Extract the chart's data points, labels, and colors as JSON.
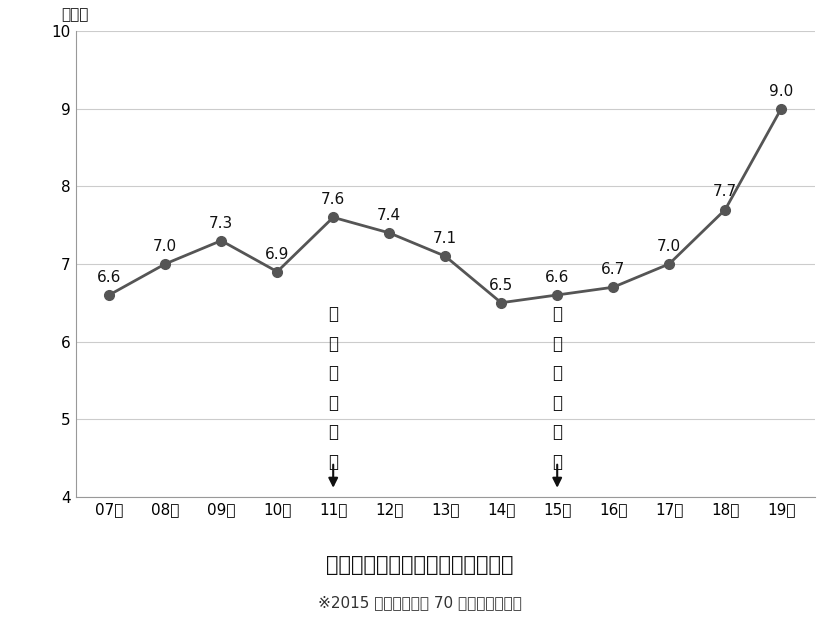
{
  "years": [
    "07年",
    "08年",
    "09年",
    "10年",
    "11年",
    "12年",
    "13年",
    "14年",
    "15年",
    "16年",
    "17年",
    "18年",
    "19年"
  ],
  "values": [
    6.6,
    7.0,
    7.3,
    6.9,
    7.6,
    7.4,
    7.1,
    6.5,
    6.6,
    6.7,
    7.0,
    7.7,
    9.0
  ],
  "ylim": [
    4,
    10
  ],
  "yticks": [
    4,
    5,
    6,
    7,
    8,
    9,
    10
  ],
  "line_color": "#555555",
  "marker_color": "#555555",
  "ann1_xi": 4,
  "ann1_chars": [
    "東",
    "日",
    "本",
    "大",
    "震",
    "災"
  ],
  "ann2_xi": 8,
  "ann2_chars": [
    "地",
    "方",
    "創",
    "生",
    "開",
    "始"
  ],
  "ylabel_text": "（点）",
  "title_text": "【市区町村魅力度平均点の推移】",
  "subtitle_text": "※2015 年結果は年代 70 代も合めた結果",
  "bg_color": "#ffffff",
  "annotation_color": "#111111",
  "annotation_fontsize": 12,
  "label_fontsize": 11,
  "tick_fontsize": 11,
  "title_fontsize": 15,
  "subtitle_fontsize": 11
}
